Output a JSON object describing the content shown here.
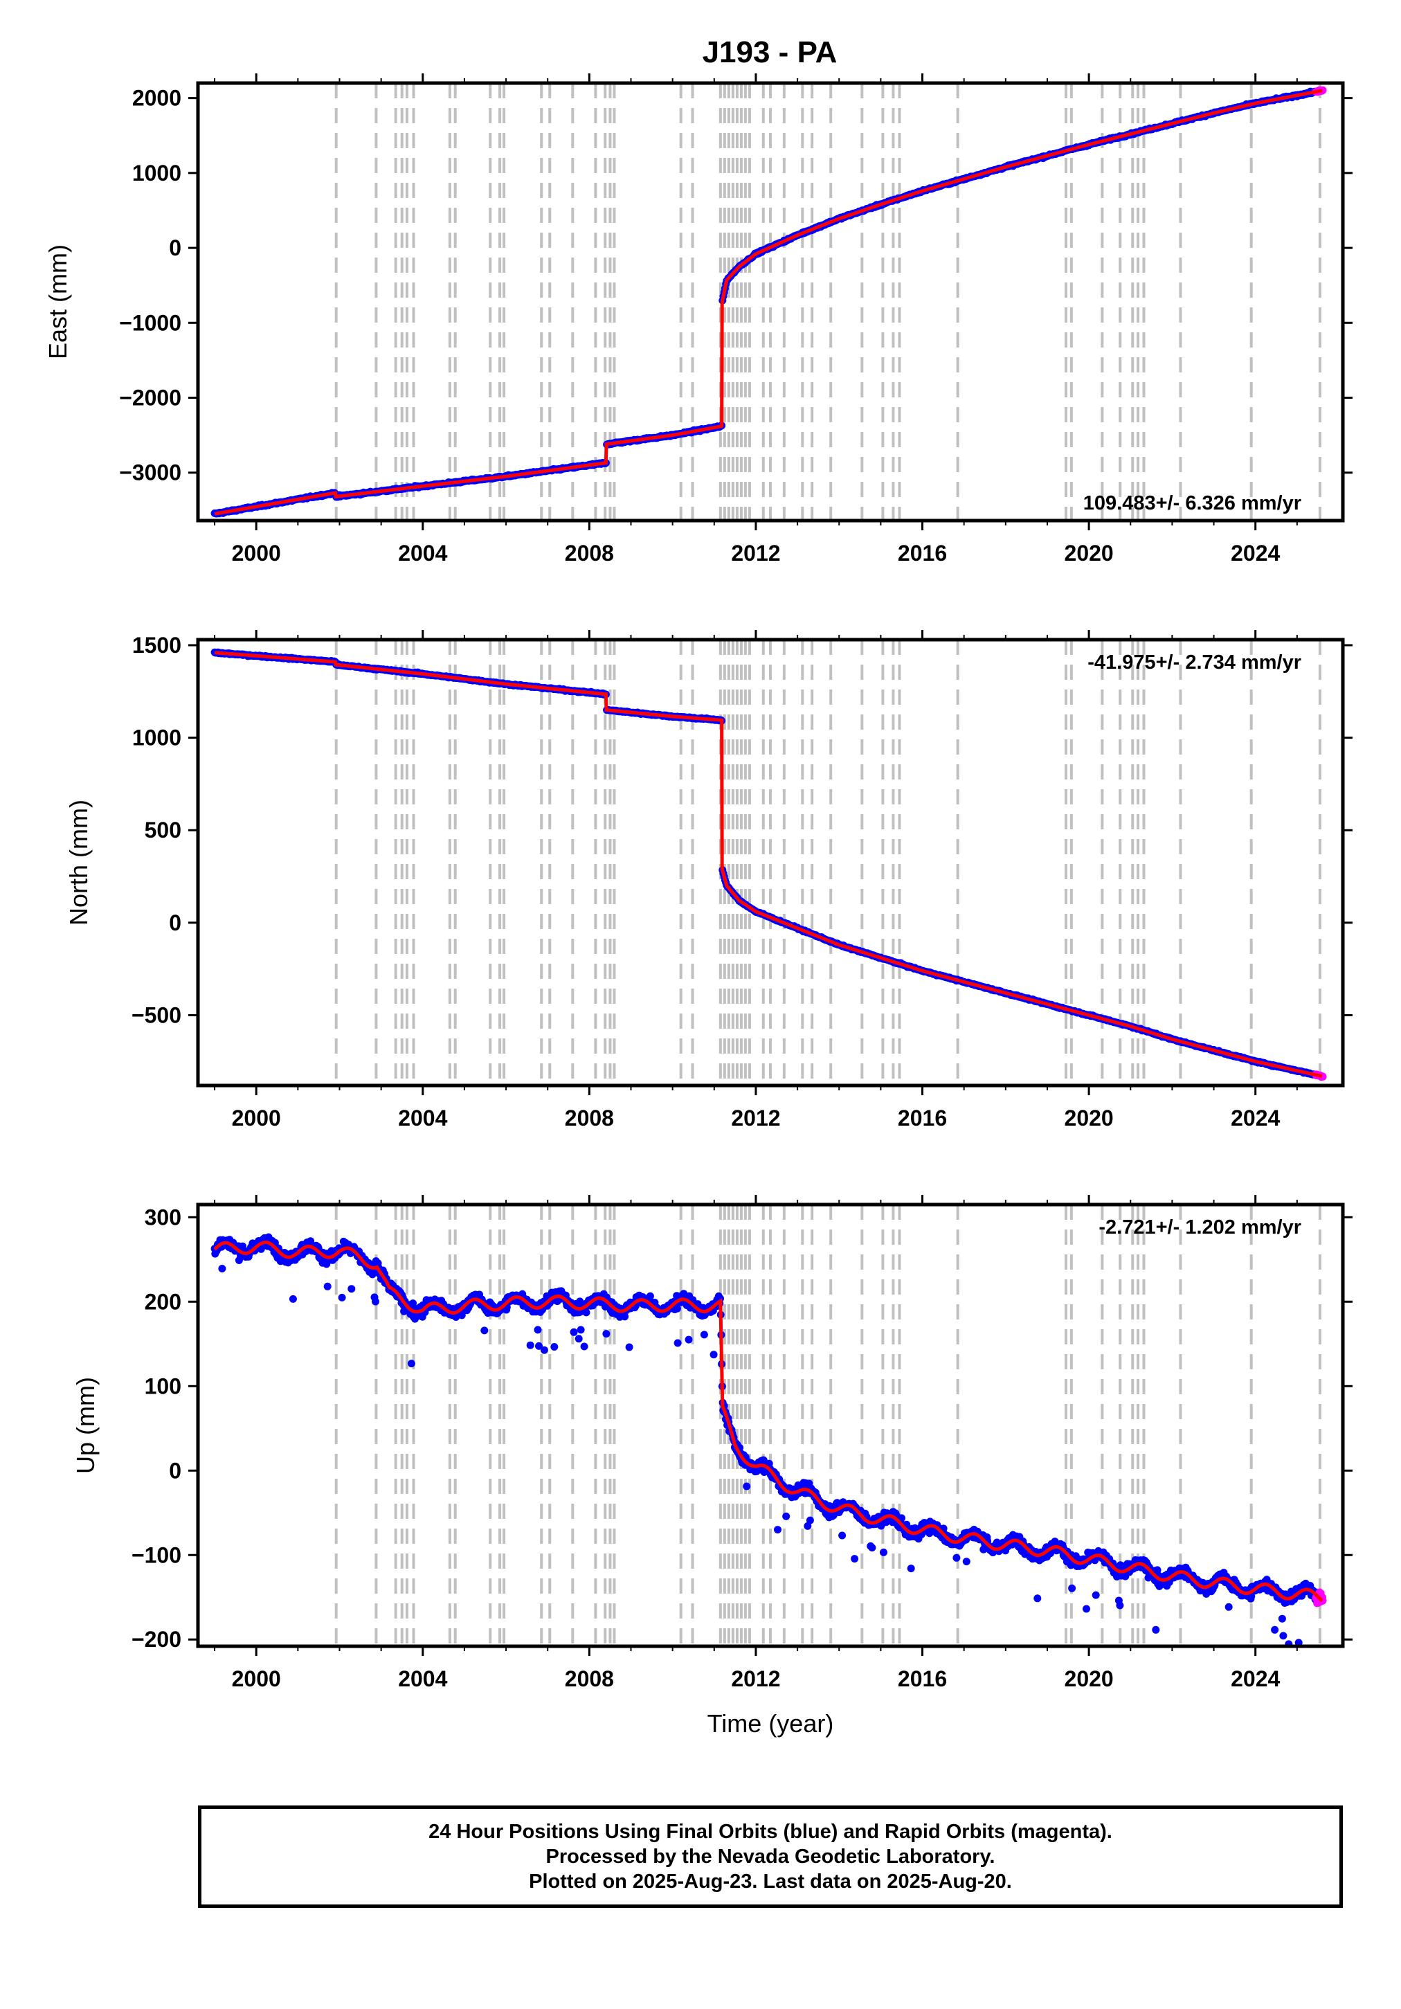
{
  "title": "J193 - PA",
  "footer": {
    "line1": "24 Hour Positions Using Final Orbits (blue) and Rapid Orbits (magenta).",
    "line2": "Processed by the Nevada Geodetic Laboratory.",
    "line3": "Plotted on 2025-Aug-23. Last data on 2025-Aug-20."
  },
  "colors": {
    "final_orbits": "#0000ff",
    "rapid_orbits": "#ff00ff",
    "model_fit": "#ff0000",
    "event_lines": "#c0c0c0"
  },
  "chart_data": [
    {
      "type": "scatter",
      "ylabel": "East (mm)",
      "xlabel": "",
      "xlim": [
        1998.6,
        2026.1
      ],
      "ylim": [
        -3640,
        2200
      ],
      "xticks": [
        2000,
        2004,
        2008,
        2012,
        2016,
        2020,
        2024
      ],
      "yticks": [
        -3000,
        -2000,
        -1000,
        0,
        1000,
        2000
      ],
      "rate_text": "109.483+/- 6.326 mm/yr",
      "rate_position": "bottom-right",
      "grid": false,
      "series": [
        {
          "x": [
            1999.0,
            2001.9,
            2001.91,
            2004.0,
            2006.0,
            2008.4,
            2008.41,
            2010.0,
            2011.18,
            2011.19,
            2011.3,
            2011.6,
            2012.0,
            2013.0,
            2014.0,
            2015.0,
            2016.0,
            2017.0,
            2018.0,
            2019.0,
            2020.0,
            2021.0,
            2022.0,
            2023.0,
            2024.0,
            2025.6
          ],
          "y": [
            -3550,
            -3270,
            -3320,
            -3180,
            -3050,
            -2870,
            -2620,
            -2500,
            -2380,
            -730,
            -430,
            -250,
            -80,
            170,
            390,
            580,
            760,
            920,
            1080,
            1230,
            1380,
            1520,
            1660,
            1800,
            1930,
            2100
          ]
        }
      ]
    },
    {
      "type": "scatter",
      "ylabel": "North (mm)",
      "xlabel": "",
      "xlim": [
        1998.6,
        2026.1
      ],
      "ylim": [
        -880,
        1530
      ],
      "xticks": [
        2000,
        2004,
        2008,
        2012,
        2016,
        2020,
        2024
      ],
      "yticks": [
        -500,
        0,
        500,
        1000,
        1500
      ],
      "rate_text": "-41.975+/- 2.734 mm/yr",
      "rate_position": "top-right",
      "grid": false,
      "series": [
        {
          "x": [
            1999.0,
            2001.9,
            2001.91,
            2004.0,
            2006.0,
            2008.4,
            2008.41,
            2010.0,
            2011.18,
            2011.19,
            2011.3,
            2011.6,
            2012.0,
            2013.0,
            2014.0,
            2015.0,
            2016.0,
            2017.0,
            2018.0,
            2019.0,
            2020.0,
            2021.0,
            2022.0,
            2023.0,
            2024.0,
            2025.6
          ],
          "y": [
            1460,
            1410,
            1395,
            1345,
            1290,
            1235,
            1150,
            1115,
            1095,
            290,
            200,
            120,
            60,
            -30,
            -120,
            -190,
            -260,
            -320,
            -380,
            -440,
            -500,
            -560,
            -630,
            -690,
            -750,
            -830
          ]
        }
      ]
    },
    {
      "type": "scatter",
      "ylabel": "Up (mm)",
      "xlabel": "Time (year)",
      "xlim": [
        1998.6,
        2026.1
      ],
      "ylim": [
        -208,
        315
      ],
      "xticks": [
        2000,
        2004,
        2008,
        2012,
        2016,
        2020,
        2024
      ],
      "yticks": [
        -200,
        -100,
        0,
        100,
        200,
        300
      ],
      "rate_text": "-2.721+/- 1.202 mm/yr",
      "rate_position": "top-right",
      "grid": false,
      "series": [
        {
          "x": [
            1999.0,
            2000.0,
            2001.0,
            2002.0,
            2002.9,
            2003.2,
            2004.0,
            2005.0,
            2006.0,
            2007.0,
            2008.0,
            2009.0,
            2010.0,
            2011.15,
            2011.2,
            2011.5,
            2012.0,
            2013.0,
            2014.0,
            2015.0,
            2016.0,
            2017.0,
            2018.0,
            2019.0,
            2020.0,
            2021.0,
            2022.0,
            2023.0,
            2024.0,
            2025.6
          ],
          "y": [
            262,
            265,
            258,
            260,
            245,
            210,
            190,
            195,
            198,
            200,
            198,
            195,
            196,
            195,
            70,
            30,
            5,
            -25,
            -45,
            -58,
            -70,
            -80,
            -88,
            -95,
            -105,
            -115,
            -125,
            -133,
            -140,
            -150
          ]
        }
      ]
    }
  ],
  "event_lines_years": [
    2001.92,
    2002.88,
    2003.35,
    2003.5,
    2003.62,
    2003.78,
    2004.65,
    2004.78,
    2005.62,
    2005.85,
    2005.95,
    2006.85,
    2007.05,
    2007.6,
    2008.15,
    2008.38,
    2008.5,
    2008.6,
    2010.2,
    2010.48,
    2011.15,
    2011.25,
    2011.35,
    2011.45,
    2011.55,
    2011.65,
    2011.75,
    2011.85,
    2012.18,
    2012.35,
    2012.68,
    2013.12,
    2013.35,
    2013.8,
    2014.55,
    2015.05,
    2015.3,
    2015.45,
    2016.85,
    2019.45,
    2019.58,
    2020.32,
    2020.75,
    2021.05,
    2021.18,
    2021.32,
    2022.2,
    2023.9,
    2025.55
  ]
}
